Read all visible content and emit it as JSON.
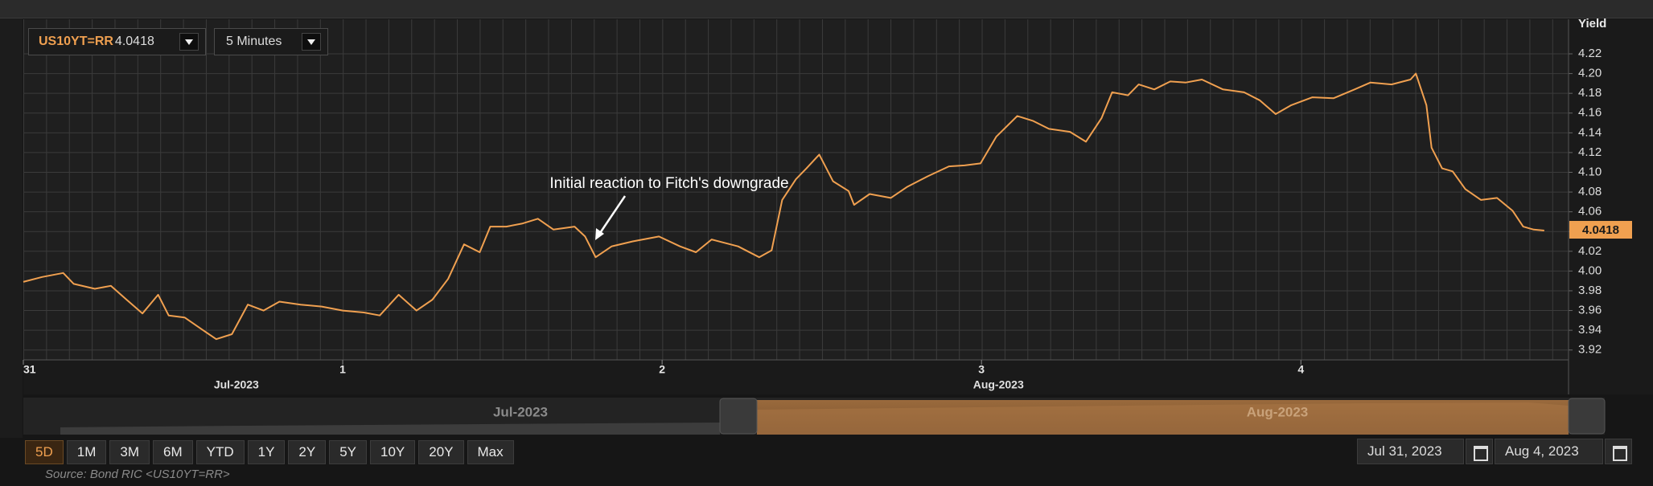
{
  "toolbar": {
    "instrument": "US10YT=RR",
    "interval": "5 Minutes"
  },
  "chart_data": {
    "type": "line",
    "y_axis_label": "Yield",
    "color": "#f0a050",
    "last_value": 4.0418,
    "annotation": "Initial reaction to Fitch's downgrade",
    "x": [
      0,
      0.059,
      0.125,
      0.158,
      0.224,
      0.274,
      0.323,
      0.373,
      0.422,
      0.455,
      0.505,
      0.554,
      0.604,
      0.653,
      0.703,
      0.752,
      0.802,
      0.868,
      0.934,
      1.0,
      1.066,
      1.116,
      1.175,
      1.231,
      1.281,
      1.33,
      1.38,
      1.429,
      1.462,
      1.512,
      1.561,
      1.611,
      1.66,
      1.726,
      1.759,
      1.792,
      1.842,
      1.908,
      1.99,
      2.056,
      2.106,
      2.155,
      2.238,
      2.304,
      2.343,
      2.376,
      2.419,
      2.452,
      2.492,
      2.535,
      2.584,
      2.601,
      2.65,
      2.716,
      2.766,
      2.832,
      2.898,
      2.947,
      2.997,
      3.046,
      3.112,
      3.162,
      3.211,
      3.277,
      3.327,
      3.376,
      3.409,
      3.459,
      3.492,
      3.541,
      3.591,
      3.64,
      3.69,
      3.756,
      3.822,
      3.871,
      3.921,
      3.97,
      4.036,
      4.102,
      4.168,
      4.218,
      4.284,
      4.343,
      4.36,
      4.393,
      4.409,
      4.442,
      4.475,
      4.515,
      4.564,
      4.614,
      4.663,
      4.696,
      4.729,
      4.762
    ],
    "values": [
      3.989,
      3.994,
      3.998,
      3.987,
      3.982,
      3.985,
      3.971,
      3.957,
      3.976,
      3.955,
      3.953,
      3.942,
      3.931,
      3.936,
      3.966,
      3.96,
      3.969,
      3.966,
      3.964,
      3.96,
      3.958,
      3.955,
      3.976,
      3.96,
      3.971,
      3.992,
      4.027,
      4.019,
      4.045,
      4.045,
      4.048,
      4.053,
      4.042,
      4.045,
      4.035,
      4.014,
      4.025,
      4.03,
      4.035,
      4.025,
      4.019,
      4.032,
      4.025,
      4.014,
      4.021,
      4.072,
      4.093,
      4.104,
      4.118,
      4.091,
      4.081,
      4.067,
      4.078,
      4.074,
      4.085,
      4.096,
      4.106,
      4.107,
      4.109,
      4.136,
      4.157,
      4.152,
      4.144,
      4.141,
      4.131,
      4.155,
      4.181,
      4.178,
      4.189,
      4.184,
      4.192,
      4.191,
      4.194,
      4.184,
      4.181,
      4.173,
      4.159,
      4.168,
      4.176,
      4.175,
      4.184,
      4.191,
      4.189,
      4.194,
      4.2,
      4.168,
      4.125,
      4.104,
      4.101,
      4.083,
      4.072,
      4.074,
      4.061,
      4.045,
      4.042,
      4.041
    ],
    "xlim": [
      0,
      4.838
    ],
    "xticks": [
      {
        "value": 0,
        "label": "31"
      },
      {
        "value": 1,
        "label": "1"
      },
      {
        "value": 2,
        "label": "2"
      },
      {
        "value": 3,
        "label": "3"
      },
      {
        "value": 4,
        "label": "4"
      }
    ],
    "month_labels": [
      {
        "value": 0.667,
        "label": "Jul-2023"
      },
      {
        "value": 3.053,
        "label": "Aug-2023"
      }
    ],
    "ylim": [
      3.91,
      4.255
    ],
    "yticks": [
      {
        "value": 3.92,
        "label": "3.92"
      },
      {
        "value": 3.94,
        "label": "3.94"
      },
      {
        "value": 3.96,
        "label": "3.96"
      },
      {
        "value": 3.98,
        "label": "3.98"
      },
      {
        "value": 4.0,
        "label": "4.00"
      },
      {
        "value": 4.02,
        "label": "4.02"
      },
      {
        "value": 4.04,
        "label": "4.04"
      },
      {
        "value": 4.06,
        "label": "4.06"
      },
      {
        "value": 4.08,
        "label": "4.08"
      },
      {
        "value": 4.1,
        "label": "4.10"
      },
      {
        "value": 4.12,
        "label": "4.12"
      },
      {
        "value": 4.14,
        "label": "4.14"
      },
      {
        "value": 4.16,
        "label": "4.16"
      },
      {
        "value": 4.18,
        "label": "4.18"
      },
      {
        "value": 4.2,
        "label": "4.20"
      },
      {
        "value": 4.22,
        "label": "4.22"
      }
    ],
    "grid": true
  },
  "navigator": {
    "labels": [
      "Jul-2023",
      "Aug-2023"
    ]
  },
  "range_buttons": [
    "5D",
    "1M",
    "3M",
    "6M",
    "YTD",
    "1Y",
    "2Y",
    "5Y",
    "10Y",
    "20Y",
    "Max"
  ],
  "date_range": [
    "Jul 31, 2023",
    "Aug 4, 2023"
  ],
  "source": "Source: Bond RIC <US10YT=RR>"
}
